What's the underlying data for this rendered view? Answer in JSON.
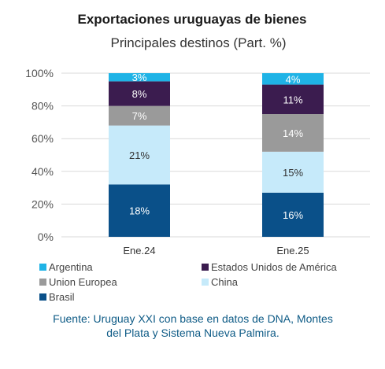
{
  "chart_data": {
    "type": "bar",
    "stacked": true,
    "title": "Exportaciones uruguayas de bienes",
    "subtitle": "Principales destinos (Part. %)",
    "categories": [
      "Ene.24",
      "Ene.25"
    ],
    "ylim": [
      0,
      100
    ],
    "yticks": [
      "0%",
      "20%",
      "40%",
      "60%",
      "80%",
      "100%"
    ],
    "grid": true,
    "legend_position": "bottom",
    "series": [
      {
        "name": "Brasil",
        "color": "#0a5089",
        "values": [
          32,
          27
        ],
        "labels": [
          "18%",
          "16%"
        ],
        "label_color": "#ffffff"
      },
      {
        "name": "China",
        "color": "#c6eafa",
        "values": [
          36,
          25
        ],
        "labels": [
          "21%",
          "15%"
        ],
        "label_color": "#333333"
      },
      {
        "name": "Union Europea",
        "color": "#9a9a9a",
        "values": [
          12,
          23
        ],
        "labels": [
          "7%",
          "14%"
        ],
        "label_color": "#ffffff"
      },
      {
        "name": "Estados Unidos de América",
        "color": "#3b1c4f",
        "values": [
          15,
          18
        ],
        "labels": [
          "8%",
          "11%"
        ],
        "label_color": "#ffffff"
      },
      {
        "name": "Argentina",
        "color": "#1fb3e6",
        "values": [
          5,
          7
        ],
        "labels": [
          "3%",
          "4%"
        ],
        "label_color": "#ffffff"
      }
    ],
    "legend_order": [
      "Argentina",
      "Estados Unidos de América",
      "Union Europea",
      "China",
      "Brasil"
    ]
  },
  "source_note": "Fuente: Uruguay XXI con base en datos de DNA, Montes del Plata y Sistema Nueva Palmira."
}
